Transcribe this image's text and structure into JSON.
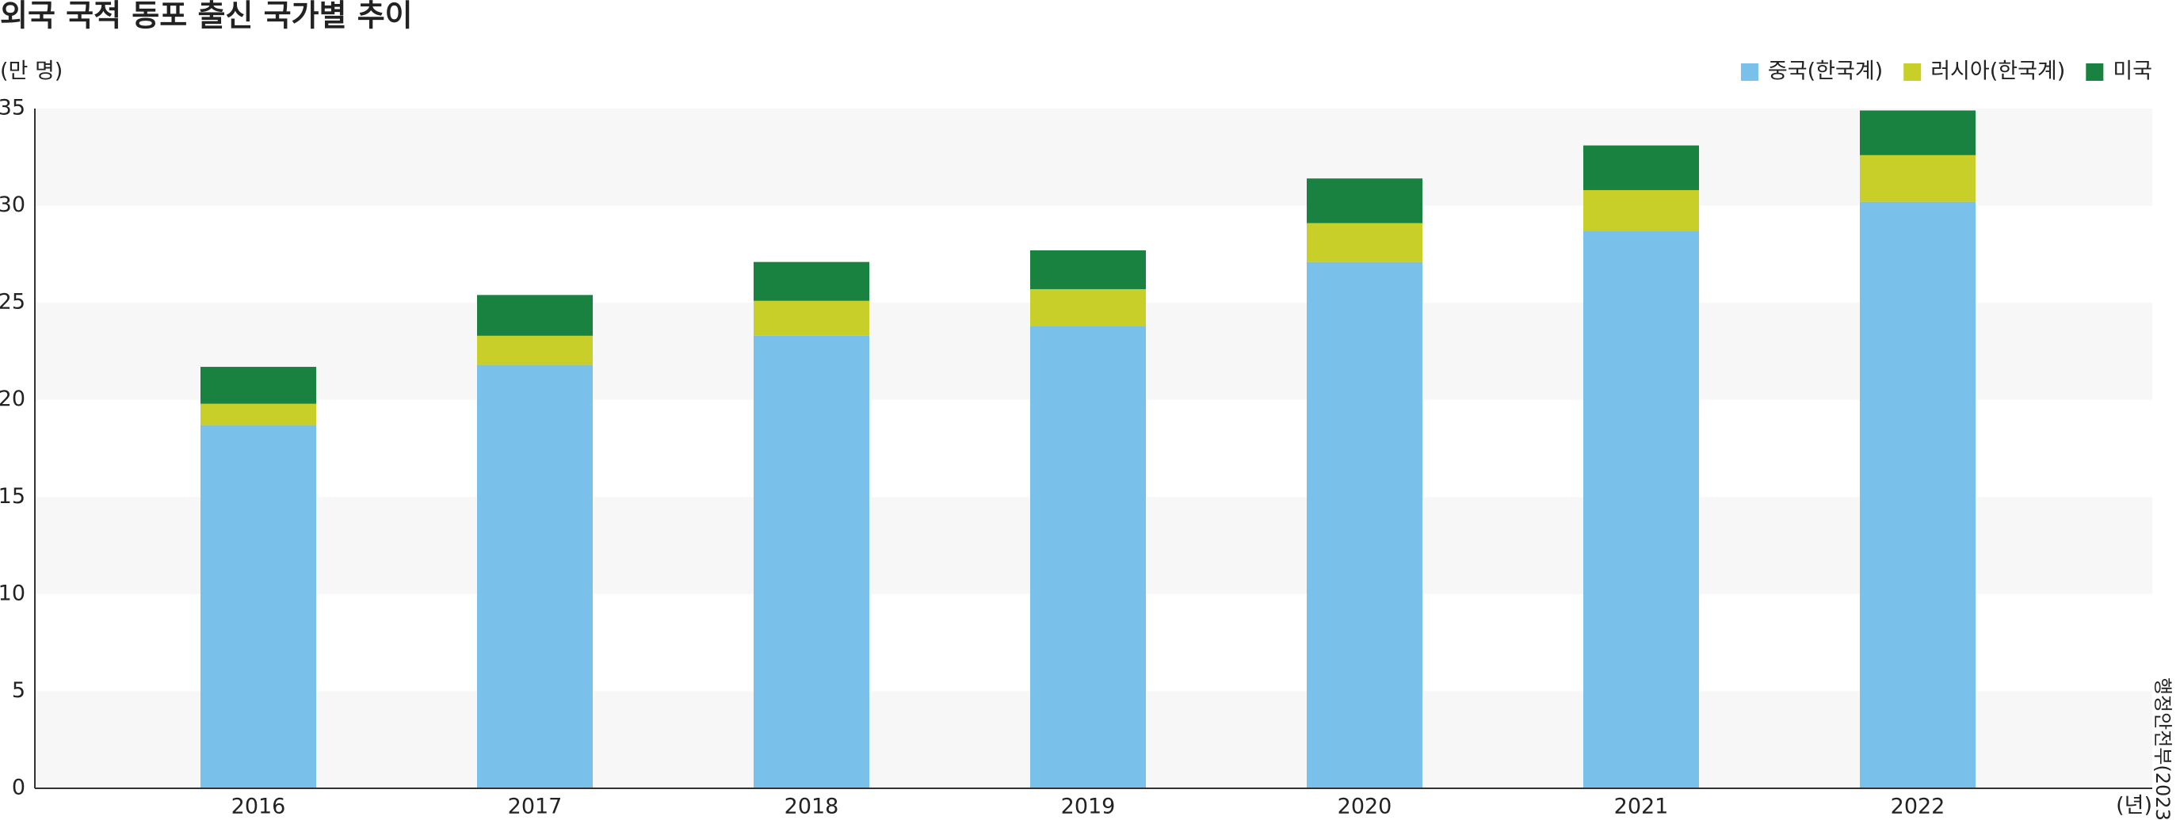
{
  "chart_data": {
    "type": "stacked_bar",
    "title": "외국 국적 동포 출신 국가별 추이",
    "y_axis_label": "(만 명)",
    "x_axis_label": "(년)",
    "source": "행정안전부(2023)",
    "categories": [
      "2016",
      "2017",
      "2018",
      "2019",
      "2020",
      "2021",
      "2022"
    ],
    "series": [
      {
        "name": "중국(한국계)",
        "color": "#79c0eb",
        "values": [
          18.7,
          21.8,
          23.3,
          23.8,
          27.1,
          28.7,
          30.2
        ]
      },
      {
        "name": "러시아(한국계)",
        "color": "#c8cf28",
        "values": [
          1.1,
          1.5,
          1.8,
          1.9,
          2.0,
          2.1,
          2.4
        ]
      },
      {
        "name": "미국",
        "color": "#1a8240",
        "values": [
          1.9,
          2.1,
          2.0,
          2.0,
          2.3,
          2.3,
          2.3
        ]
      }
    ],
    "ylim": [
      0,
      35
    ],
    "yticks": [
      0,
      5,
      10,
      15,
      20,
      25,
      30,
      35
    ],
    "grid": "bands",
    "legend": "top-right"
  }
}
